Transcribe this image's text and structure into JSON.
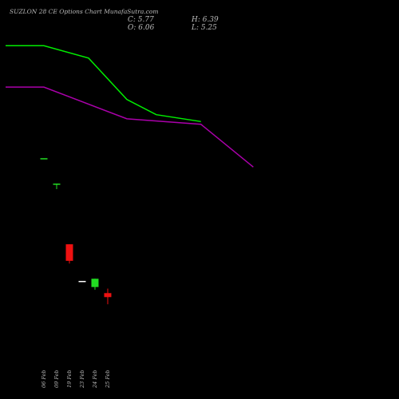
{
  "header": {
    "title": "SUZLON  28  CE Options  Chart MunafaSutra.com",
    "close": "C: 5.77",
    "open": "O: 6.06",
    "high": "H: 6.39",
    "low": "L: 5.25"
  },
  "colors": {
    "background": "#000000",
    "up": "#22dd22",
    "down": "#ee1111",
    "ma_green": "#00ee00",
    "ma_purple": "#aa00aa",
    "text": "#bbbbbb"
  },
  "chart_data": {
    "type": "candlestick",
    "categories": [
      "06 Feb",
      "09 Feb",
      "19 Feb",
      "23 Feb",
      "24 Feb",
      "25 Feb"
    ],
    "ylim": [
      0,
      25
    ],
    "candles": [
      {
        "date": "06 Feb",
        "open": 15.8,
        "high": 15.8,
        "low": 15.8,
        "close": 15.8
      },
      {
        "date": "09 Feb",
        "open": 14.0,
        "high": 14.0,
        "low": 13.6,
        "close": 14.0
      },
      {
        "date": "19 Feb",
        "open": 9.6,
        "high": 9.6,
        "low": 8.2,
        "close": 8.4
      },
      {
        "date": "23 Feb",
        "open": 6.9,
        "high": 6.9,
        "low": 6.9,
        "close": 6.9
      },
      {
        "date": "24 Feb",
        "open": 6.5,
        "high": 7.1,
        "low": 6.3,
        "close": 7.1
      },
      {
        "date": "25 Feb",
        "open": 6.06,
        "high": 6.39,
        "low": 5.25,
        "close": 5.77
      }
    ],
    "series": [
      {
        "color": "#00ee00",
        "x": [
          -3,
          0,
          3.5,
          6.5,
          8.8,
          12.3
        ],
        "values": [
          24.0,
          24.0,
          23.1,
          20.1,
          19.0,
          18.5
        ]
      },
      {
        "color": "#aa00aa",
        "x": [
          -3,
          0,
          6.5,
          12.3,
          16.4
        ],
        "values": [
          21.0,
          21.0,
          18.7,
          18.3,
          15.2
        ]
      }
    ]
  }
}
